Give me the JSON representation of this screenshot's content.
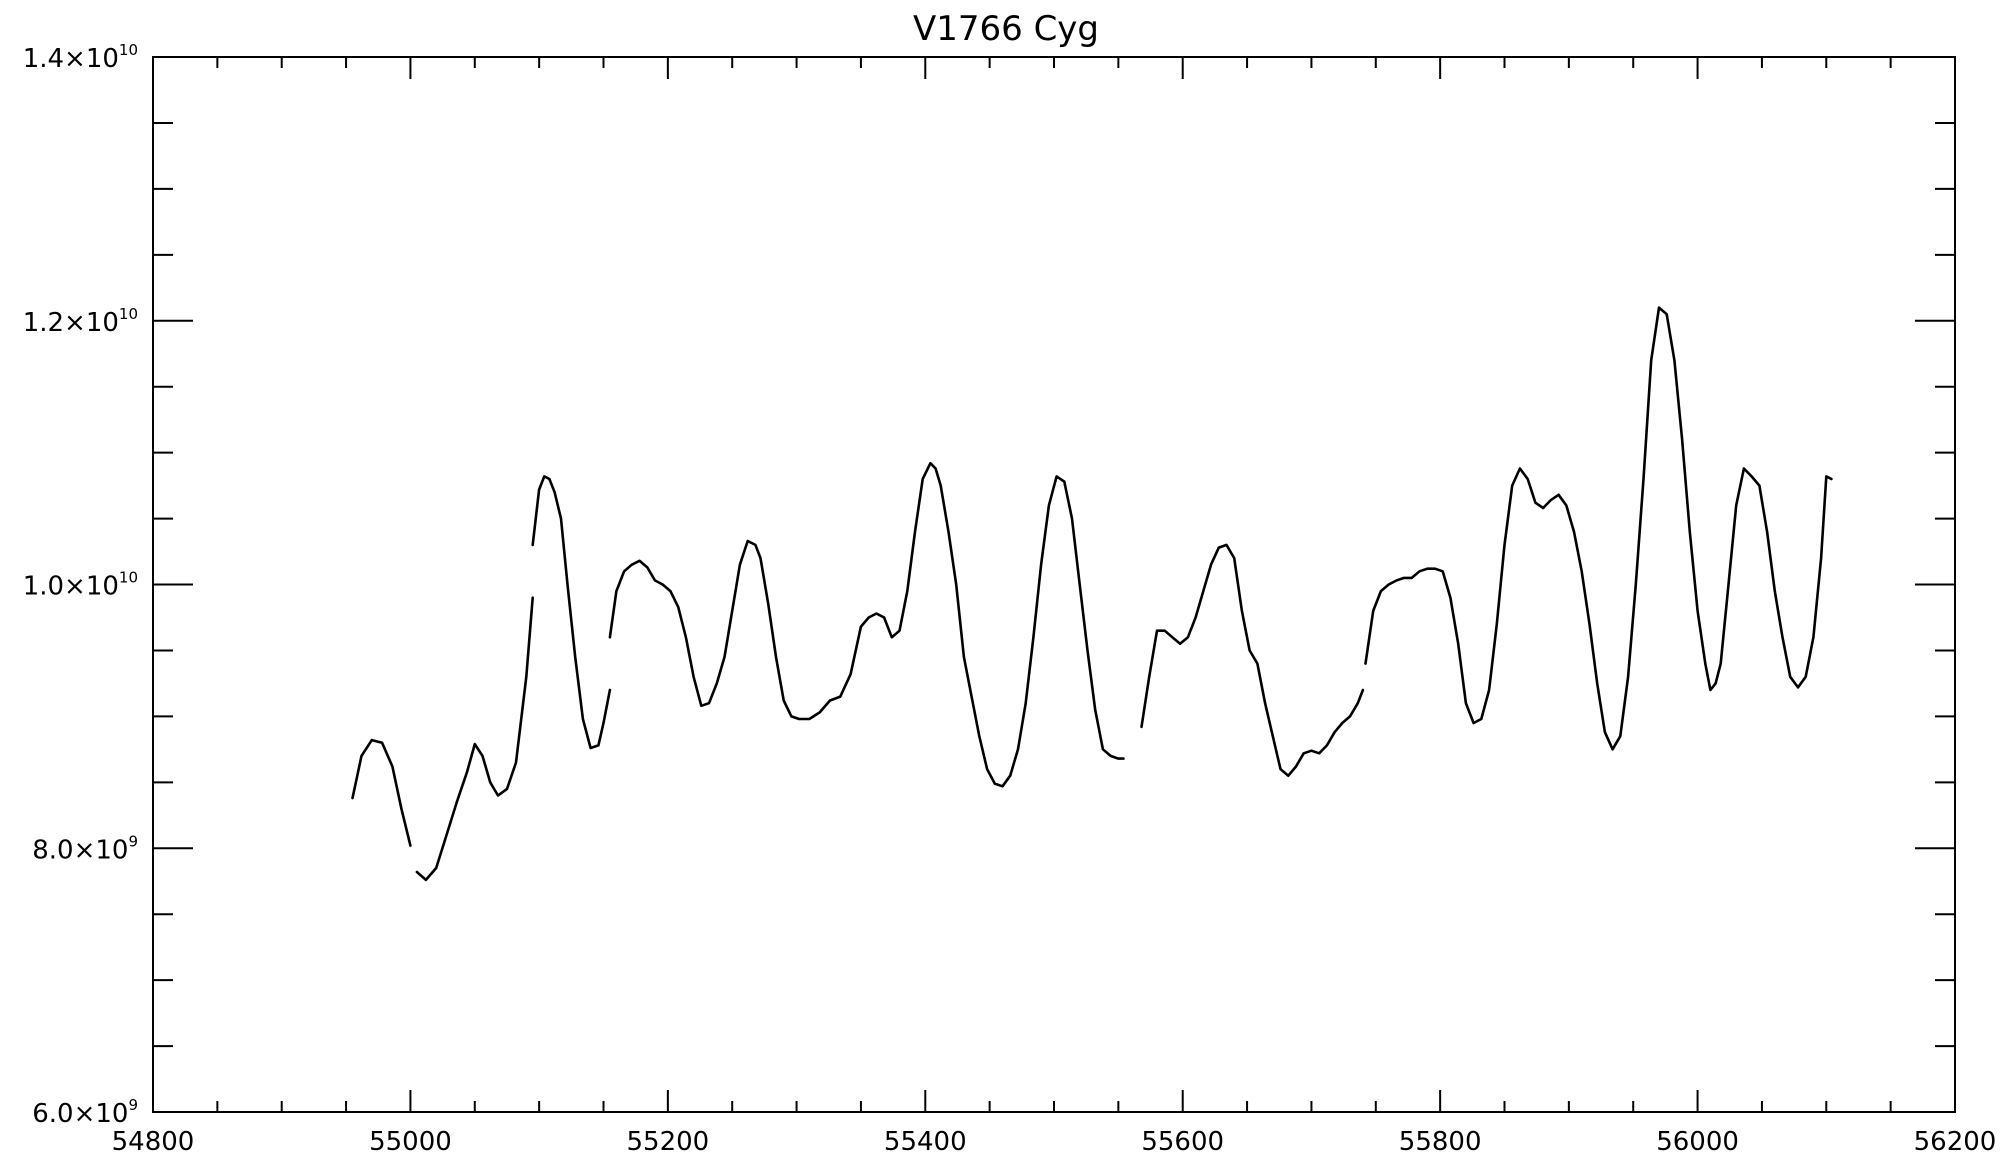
{
  "chart_data": {
    "type": "line",
    "title": "V1766 Cyg",
    "xlabel": "",
    "ylabel": "",
    "xlim": [
      54800,
      56200
    ],
    "ylim": [
      6000000000.0,
      14000000000.0
    ],
    "grid": false,
    "x_ticks": [
      {
        "value": 54800,
        "label": "54800"
      },
      {
        "value": 55000,
        "label": "55000"
      },
      {
        "value": 55200,
        "label": "55200"
      },
      {
        "value": 55400,
        "label": "55400"
      },
      {
        "value": 55600,
        "label": "55600"
      },
      {
        "value": 55800,
        "label": "55800"
      },
      {
        "value": 56000,
        "label": "56000"
      },
      {
        "value": 56200,
        "label": "56200"
      }
    ],
    "x_minor_step": 50,
    "y_ticks": [
      {
        "value": 6000000000.0,
        "mantissa": "6.0×10",
        "exponent": "9"
      },
      {
        "value": 8000000000.0,
        "mantissa": "8.0×10",
        "exponent": "9"
      },
      {
        "value": 10000000000.0,
        "mantissa": "1.0×10",
        "exponent": "10"
      },
      {
        "value": 12000000000.0,
        "mantissa": "1.2×10",
        "exponent": "10"
      },
      {
        "value": 14000000000.0,
        "mantissa": "1.4×10",
        "exponent": "10"
      }
    ],
    "y_minor_step": 500000000.0,
    "segments": [
      {
        "x": [
          54955,
          54962,
          54970,
          54978,
          54986,
          54993,
          55000
        ],
        "y": [
          8380000000.0,
          8700000000.0,
          8820000000.0,
          8800000000.0,
          8620000000.0,
          8300000000.0,
          8020000000.0
        ]
      },
      {
        "x": [
          55005,
          55012,
          55020,
          55028,
          55036,
          55044,
          55050,
          55056,
          55062,
          55068,
          55075,
          55082,
          55090,
          55095
        ],
        "y": [
          7820000000.0,
          7760000000.0,
          7850000000.0,
          8100000000.0,
          8350000000.0,
          8580000000.0,
          8790000000.0,
          8700000000.0,
          8500000000.0,
          8400000000.0,
          8450000000.0,
          8650000000.0,
          9300000000.0,
          9900000000.0
        ]
      },
      {
        "x": [
          55095,
          55100,
          55104,
          55108,
          55112,
          55117,
          55122,
          55128,
          55134,
          55140,
          55146,
          55150,
          55155
        ],
        "y": [
          10300000000.0,
          10720000000.0,
          10820000000.0,
          10800000000.0,
          10700000000.0,
          10500000000.0,
          10000000000.0,
          9450000000.0,
          8980000000.0,
          8760000000.0,
          8780000000.0,
          8950000000.0,
          9200000000.0
        ]
      },
      {
        "x": [
          55155,
          55160,
          55166,
          55172,
          55178,
          55184,
          55190,
          55196,
          55202,
          55208,
          55214,
          55220,
          55226,
          55232,
          55238,
          55244,
          55250,
          55256,
          55262,
          55268,
          55272,
          55278,
          55284,
          55290,
          55296,
          55302,
          55310,
          55318,
          55326,
          55334,
          55342,
          55350,
          55356,
          55362,
          55368,
          55374,
          55380,
          55386,
          55392,
          55398,
          55404,
          55408,
          55412,
          55418,
          55424,
          55430,
          55436,
          55442,
          55448,
          55454,
          55460,
          55466,
          55472,
          55478,
          55484,
          55490,
          55496,
          55502,
          55508,
          55514,
          55520,
          55526,
          55532,
          55538,
          55544,
          55550,
          55554
        ],
        "y": [
          9600000000.0,
          9950000000.0,
          10100000000.0,
          10150000000.0,
          10180000000.0,
          10130000000.0,
          10030000000.0,
          10000000000.0,
          9950000000.0,
          9830000000.0,
          9600000000.0,
          9300000000.0,
          9080000000.0,
          9100000000.0,
          9250000000.0,
          9450000000.0,
          9800000000.0,
          10150000000.0,
          10330000000.0,
          10300000000.0,
          10200000000.0,
          9850000000.0,
          9450000000.0,
          9120000000.0,
          9000000000.0,
          8980000000.0,
          8980000000.0,
          9030000000.0,
          9120000000.0,
          9150000000.0,
          9320000000.0,
          9680000000.0,
          9750000000.0,
          9780000000.0,
          9750000000.0,
          9600000000.0,
          9650000000.0,
          9950000000.0,
          10400000000.0,
          10800000000.0,
          10920000000.0,
          10880000000.0,
          10750000000.0,
          10400000000.0,
          10000000000.0,
          9450000000.0,
          9150000000.0,
          8850000000.0,
          8600000000.0,
          8490000000.0,
          8470000000.0,
          8550000000.0,
          8750000000.0,
          9100000000.0,
          9600000000.0,
          10150000000.0,
          10600000000.0,
          10820000000.0,
          10780000000.0,
          10500000000.0,
          10000000000.0,
          9500000000.0,
          9050000000.0,
          8750000000.0,
          8700000000.0,
          8680000000.0,
          8680000000.0
        ]
      },
      {
        "x": [
          55568,
          55574,
          55580,
          55586,
          55592,
          55598,
          55604,
          55610,
          55616,
          55622,
          55628,
          55634,
          55640,
          55646,
          55652,
          55658,
          55664,
          55670,
          55676,
          55682,
          55688,
          55694,
          55700,
          55706,
          55712,
          55718,
          55724,
          55730,
          55736,
          55740
        ],
        "y": [
          8920000000.0,
          9300000000.0,
          9650000000.0,
          9650000000.0,
          9600000000.0,
          9550000000.0,
          9600000000.0,
          9750000000.0,
          9950000000.0,
          10150000000.0,
          10280000000.0,
          10300000000.0,
          10200000000.0,
          9800000000.0,
          9500000000.0,
          9400000000.0,
          9100000000.0,
          8850000000.0,
          8600000000.0,
          8550000000.0,
          8620000000.0,
          8720000000.0,
          8740000000.0,
          8720000000.0,
          8780000000.0,
          8880000000.0,
          8950000000.0,
          9000000000.0,
          9100000000.0,
          9200000000.0
        ]
      },
      {
        "x": [
          55742,
          55748,
          55754,
          55760,
          55766,
          55772,
          55778,
          55784,
          55790,
          55796,
          55802,
          55808,
          55814,
          55820,
          55826,
          55832,
          55838,
          55844,
          55850,
          55856,
          55862,
          55868,
          55874,
          55880,
          55886,
          55892,
          55898,
          55904,
          55910,
          55916,
          55922,
          55928,
          55934,
          55940,
          55946,
          55952,
          55958,
          55964,
          55970,
          55976,
          55982,
          55988,
          55994,
          56000,
          56006,
          56010,
          56014,
          56018,
          56024,
          56030,
          56036,
          56042,
          56048,
          56054,
          56060,
          56066,
          56072,
          56078,
          56084,
          56090,
          56096,
          56100,
          56104
        ],
        "y": [
          9400000000.0,
          9800000000.0,
          9950000000.0,
          10000000000.0,
          10030000000.0,
          10050000000.0,
          10050000000.0,
          10100000000.0,
          10120000000.0,
          10120000000.0,
          10100000000.0,
          9900000000.0,
          9550000000.0,
          9100000000.0,
          8950000000.0,
          8980000000.0,
          9200000000.0,
          9700000000.0,
          10300000000.0,
          10750000000.0,
          10880000000.0,
          10800000000.0,
          10620000000.0,
          10580000000.0,
          10640000000.0,
          10680000000.0,
          10600000000.0,
          10400000000.0,
          10100000000.0,
          9700000000.0,
          9250000000.0,
          8880000000.0,
          8750000000.0,
          8850000000.0,
          9300000000.0,
          10000000000.0,
          10800000000.0,
          11700000000.0,
          12100000000.0,
          12050000000.0,
          11700000000.0,
          11100000000.0,
          10400000000.0,
          9800000000.0,
          9400000000.0,
          9200000000.0,
          9250000000.0,
          9400000000.0,
          10000000000.0,
          10600000000.0,
          10880000000.0,
          10820000000.0,
          10750000000.0,
          10400000000.0,
          9950000000.0,
          9600000000.0,
          9300000000.0,
          9220000000.0,
          9300000000.0,
          9600000000.0,
          10200000000.0,
          10820000000.0,
          10800000000.0
        ]
      }
    ]
  }
}
